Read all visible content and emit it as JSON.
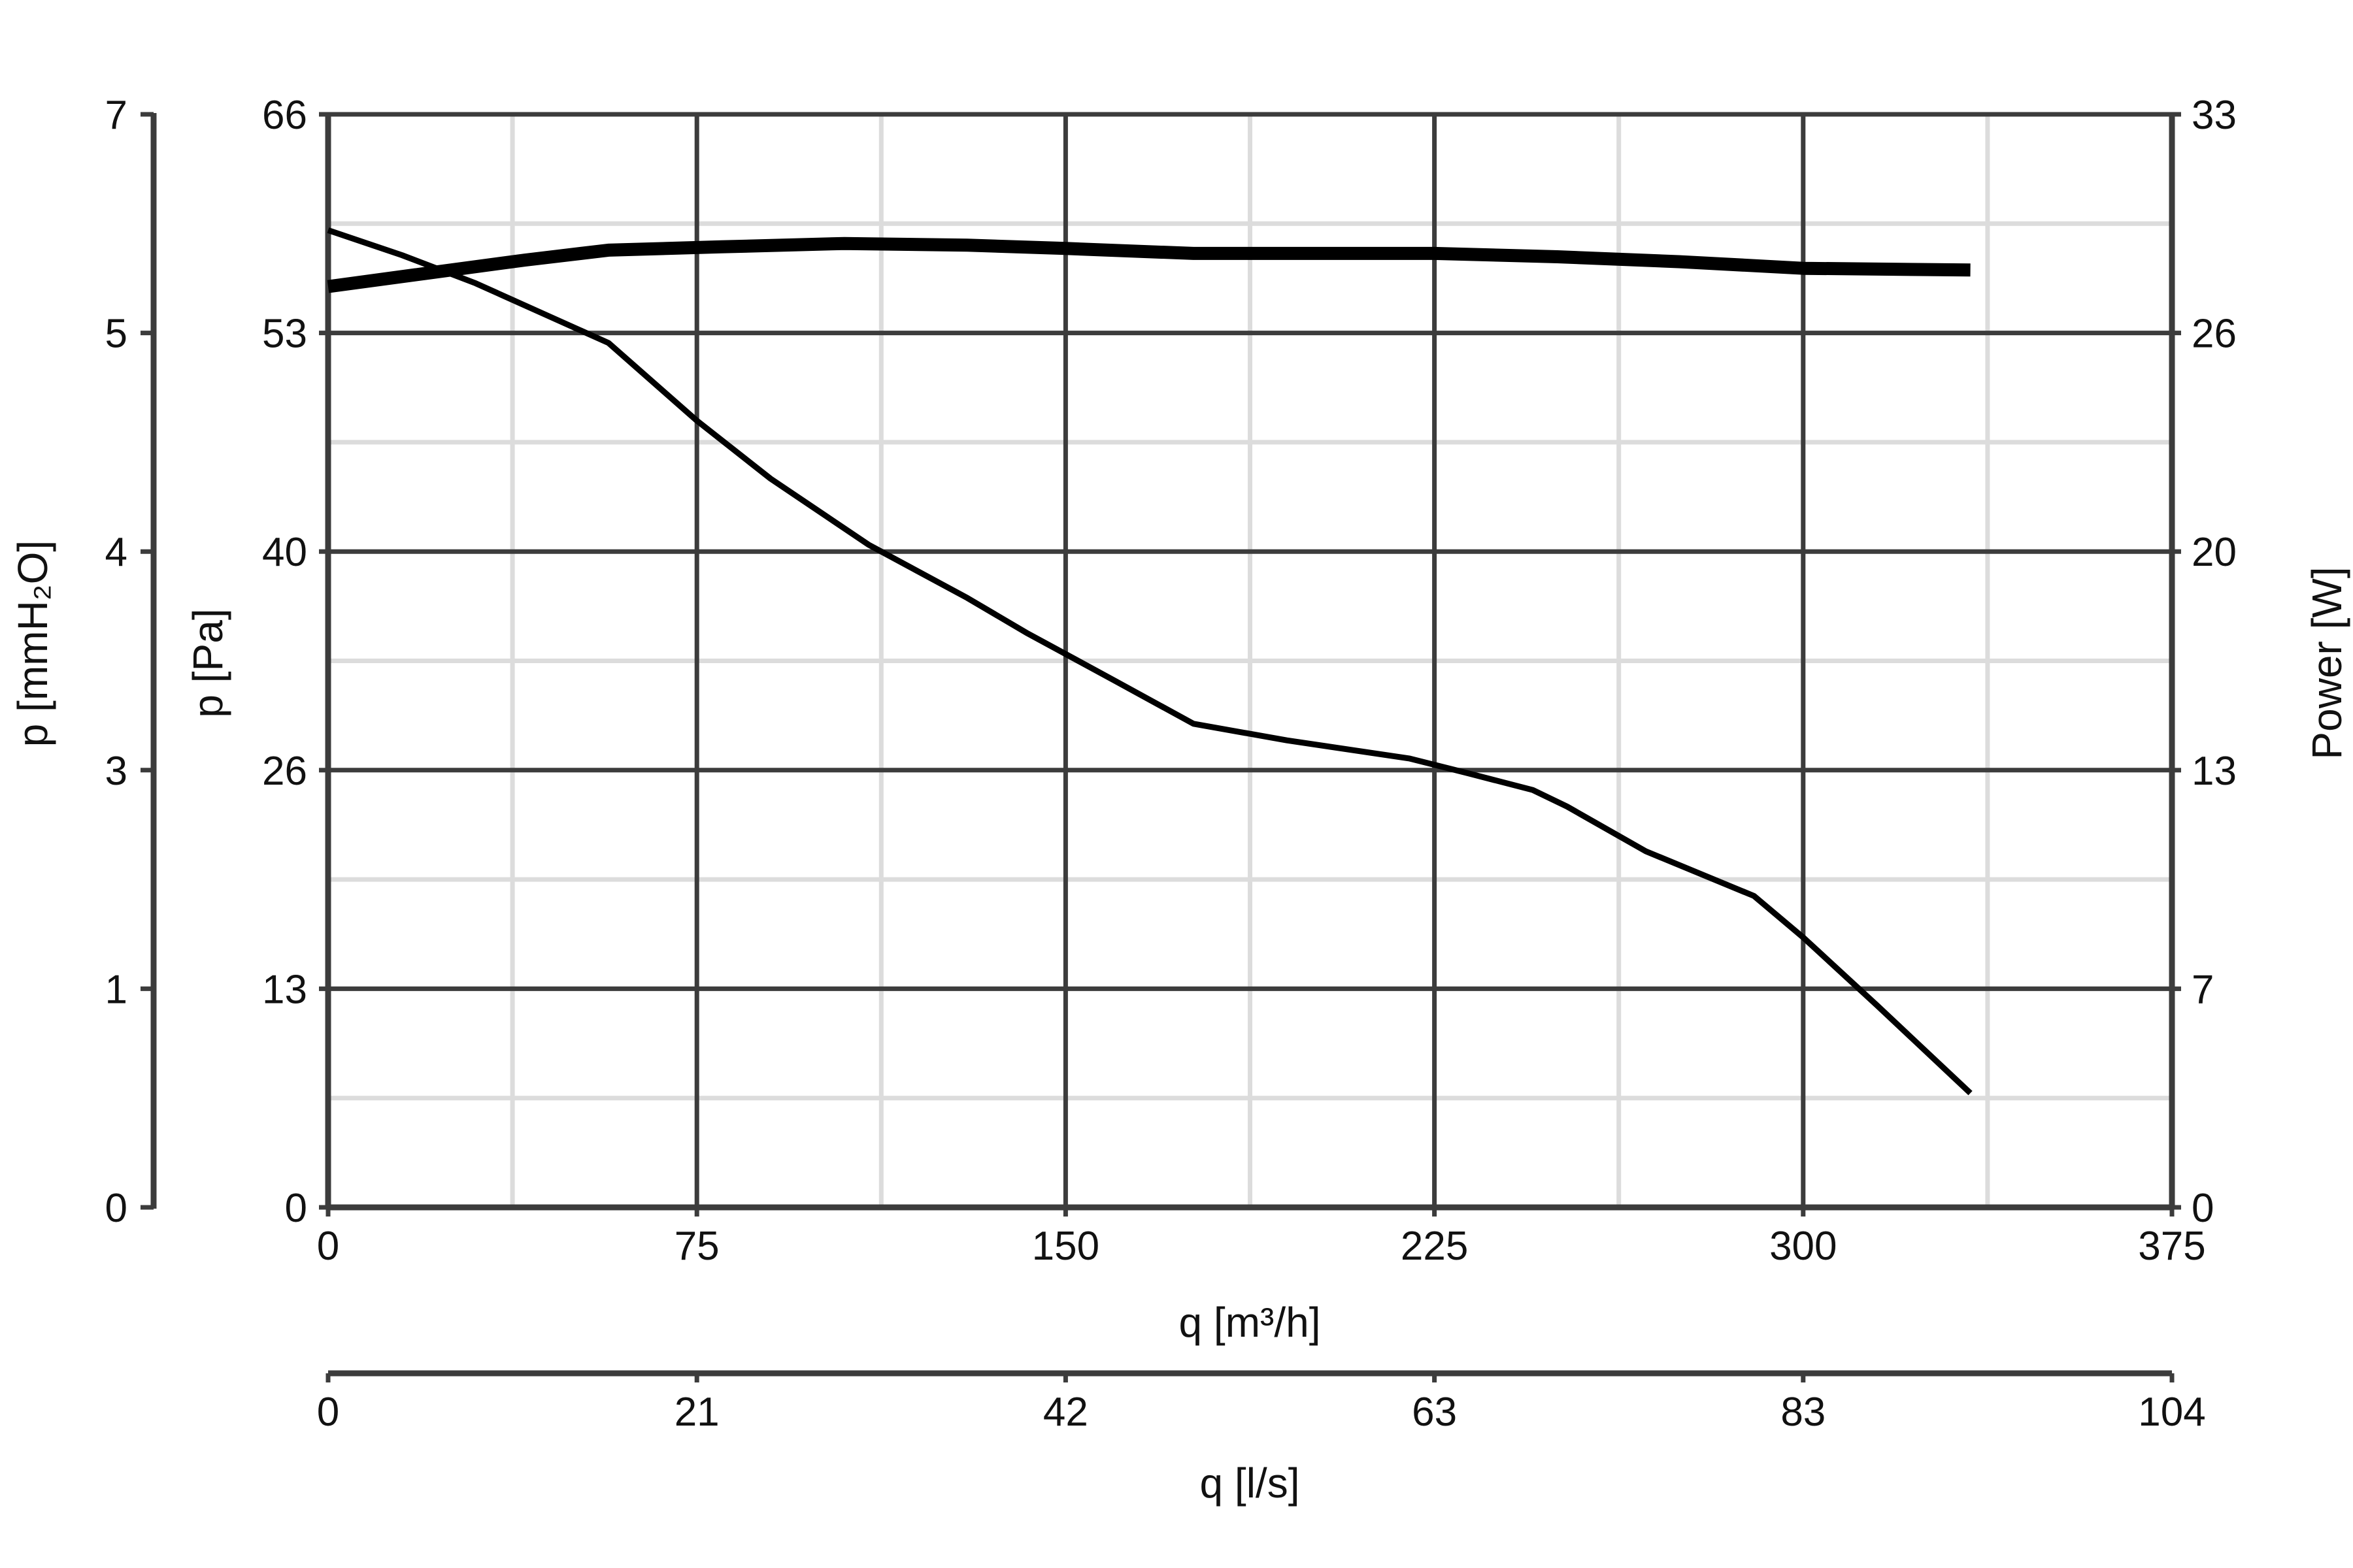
{
  "chart_data": {
    "type": "line",
    "title": "",
    "grid": true,
    "x_axis": {
      "label": "q [m³/h]",
      "range": [
        0,
        375
      ],
      "ticks": [
        0,
        75,
        150,
        225,
        300,
        375
      ],
      "tick_labels": [
        "0",
        "75",
        "150",
        "225",
        "300",
        "375"
      ]
    },
    "x2_axis": {
      "label": "q [l/s]",
      "range": [
        0,
        104
      ],
      "ticks": [
        0,
        21,
        42,
        63,
        83,
        104
      ],
      "tick_labels": [
        "0",
        "21",
        "42",
        "63",
        "83",
        "104"
      ]
    },
    "y_axis_pa": {
      "label": "p [Pa]",
      "range": [
        0,
        66
      ],
      "ticks": [
        0,
        13,
        26,
        40,
        53,
        66
      ],
      "tick_labels": [
        "0",
        "13",
        "26",
        "40",
        "53",
        "66"
      ]
    },
    "y_axis_mmh2o": {
      "label": "p [mmH₂O]",
      "range": [
        0,
        7
      ],
      "tick_labels": [
        "0",
        "1",
        "3",
        "4",
        "5",
        "7"
      ]
    },
    "y_axis_power": {
      "label": "Power [W]",
      "range": [
        0,
        33
      ],
      "ticks": [
        0,
        7,
        13,
        20,
        26,
        33
      ],
      "tick_labels": [
        "0",
        "7",
        "13",
        "20",
        "26",
        "33"
      ]
    },
    "series": [
      {
        "axis": "pressure",
        "values_unit": "Pa",
        "line_weight": "thin",
        "x": [
          0,
          15,
          30,
          45,
          57,
          75,
          90,
          110,
          130,
          142,
          160,
          176,
          195,
          220,
          232,
          245,
          252,
          268,
          290,
          300,
          315,
          334
        ],
        "y": [
          59,
          57.5,
          55.8,
          53.8,
          52.2,
          47.5,
          44,
          40,
          36.8,
          34.7,
          31.8,
          29.2,
          28.2,
          27.1,
          26.2,
          25.2,
          24.2,
          21.5,
          18.8,
          16.3,
          12.2,
          6.9
        ]
      },
      {
        "axis": "power",
        "values_unit": "W",
        "line_weight": "thick",
        "x": [
          0,
          20,
          40,
          57,
          80,
          105,
          130,
          150,
          176,
          200,
          225,
          250,
          275,
          300,
          334
        ],
        "y": [
          27.8,
          28.2,
          28.6,
          28.9,
          29.0,
          29.1,
          29.05,
          28.95,
          28.8,
          28.8,
          28.8,
          28.7,
          28.55,
          28.35,
          28.3
        ]
      }
    ]
  }
}
